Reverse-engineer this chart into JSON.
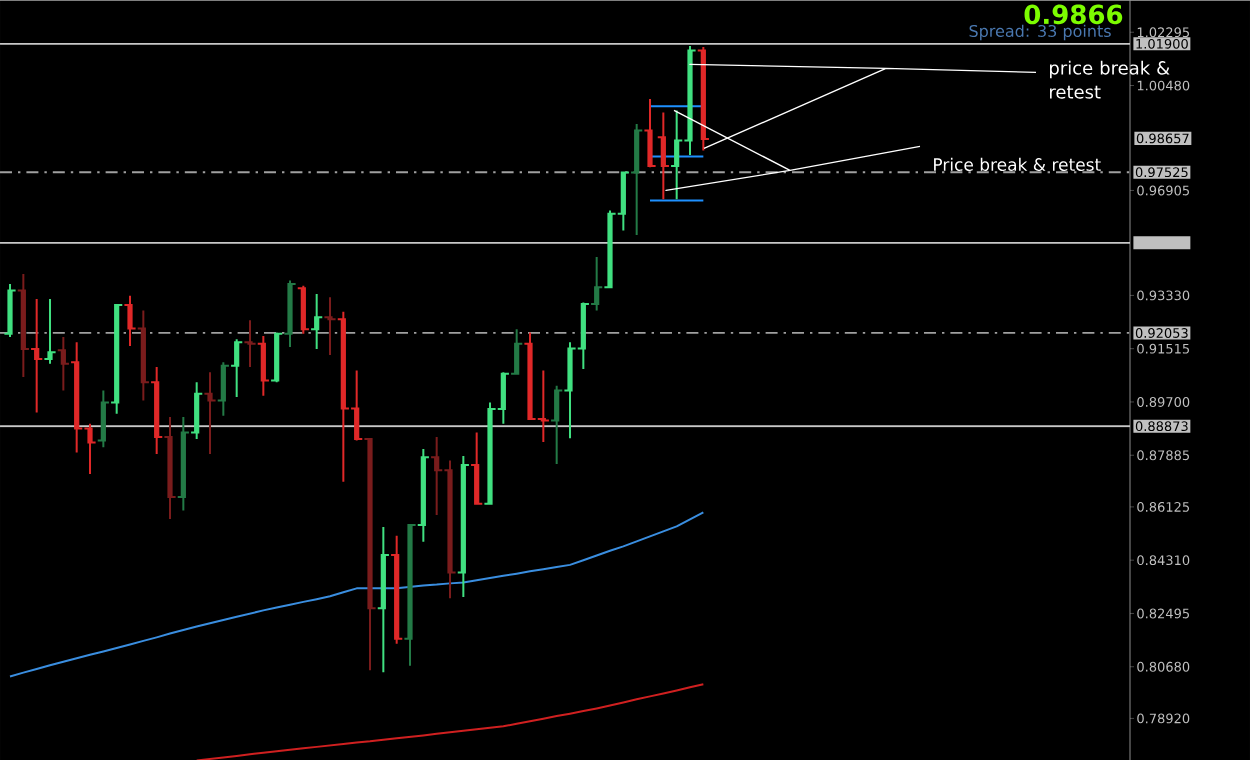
{
  "chart_data": {
    "type": "candlestick",
    "categories": [
      null,
      null,
      null,
      null,
      null,
      null,
      null,
      null,
      null,
      null,
      null,
      null,
      null,
      null,
      null,
      null,
      null,
      null,
      null,
      null,
      null,
      null,
      null,
      null,
      null,
      null,
      null,
      null,
      null,
      null,
      null,
      null,
      null,
      null,
      null,
      null,
      null,
      null,
      null,
      null,
      null,
      null,
      null,
      null,
      null,
      null,
      null,
      null,
      null,
      null,
      null,
      null,
      null
    ],
    "ohlc": [
      [
        0.9202,
        0.9372,
        0.9191,
        0.935
      ],
      [
        0.935,
        0.9406,
        0.9055,
        0.915
      ],
      [
        0.915,
        0.9321,
        0.8934,
        0.9116
      ],
      [
        0.9116,
        0.9321,
        0.91,
        0.9139
      ],
      [
        0.9146,
        0.9191,
        0.9009,
        0.91
      ],
      [
        0.9105,
        0.9173,
        0.8798,
        0.888
      ],
      [
        0.888,
        0.8896,
        0.8725,
        0.8832
      ],
      [
        0.8839,
        0.9009,
        0.8816,
        0.8968
      ],
      [
        0.8968,
        0.9304,
        0.893,
        0.93
      ],
      [
        0.93,
        0.9332,
        0.9161,
        0.922
      ],
      [
        0.922,
        0.9282,
        0.8975,
        0.9037
      ],
      [
        0.9037,
        0.9089,
        0.8793,
        0.8851
      ],
      [
        0.8851,
        0.8919,
        0.8571,
        0.8646
      ],
      [
        0.8646,
        0.8919,
        0.86,
        0.8866
      ],
      [
        0.8866,
        0.9037,
        0.8844,
        0.8998
      ],
      [
        0.8998,
        0.9071,
        0.8793,
        0.8975
      ],
      [
        0.8975,
        0.9105,
        0.8923,
        0.9093
      ],
      [
        0.9093,
        0.9184,
        0.8987,
        0.9173
      ],
      [
        0.9173,
        0.9248,
        0.9089,
        0.9168
      ],
      [
        0.9168,
        0.9195,
        0.8991,
        0.9043
      ],
      [
        0.9043,
        0.9207,
        0.9037,
        0.9202
      ],
      [
        0.9202,
        0.9384,
        0.9157,
        0.9372
      ],
      [
        0.9357,
        0.9366,
        0.9202,
        0.9218
      ],
      [
        0.9218,
        0.9338,
        0.915,
        0.9259
      ],
      [
        0.9259,
        0.9327,
        0.913,
        0.9252
      ],
      [
        0.9252,
        0.9277,
        0.8698,
        0.8948
      ],
      [
        0.8948,
        0.9077,
        0.8839,
        0.8844
      ],
      [
        0.8844,
        0.8846,
        0.8056,
        0.8267
      ],
      [
        0.8267,
        0.8544,
        0.8049,
        0.8449
      ],
      [
        0.8449,
        0.8514,
        0.8146,
        0.8163
      ],
      [
        0.8163,
        0.8551,
        0.8071,
        0.8551
      ],
      [
        0.8551,
        0.881,
        0.8494,
        0.8782
      ],
      [
        0.8782,
        0.8851,
        0.8585,
        0.8737
      ],
      [
        0.8737,
        0.8771,
        0.8301,
        0.8389
      ],
      [
        0.8389,
        0.8786,
        0.8306,
        0.8755
      ],
      [
        0.8755,
        0.8866,
        0.8623,
        0.8623
      ],
      [
        0.8623,
        0.8968,
        0.8623,
        0.8946
      ],
      [
        0.8946,
        0.9071,
        0.8896,
        0.9066
      ],
      [
        0.9066,
        0.9218,
        0.9066,
        0.9168
      ],
      [
        0.9168,
        0.9207,
        0.8912,
        0.8912
      ],
      [
        0.8912,
        0.9077,
        0.8834,
        0.8907
      ],
      [
        0.8907,
        0.9025,
        0.8759,
        0.9009
      ],
      [
        0.9009,
        0.9173,
        0.8846,
        0.9152
      ],
      [
        0.9152,
        0.9309,
        0.9082,
        0.9304
      ],
      [
        0.9304,
        0.9464,
        0.9282,
        0.9361
      ],
      [
        0.9361,
        0.9622,
        0.9357,
        0.9611
      ],
      [
        0.9611,
        0.9752,
        0.9554,
        0.9752
      ],
      [
        0.9752,
        0.9917,
        0.9539,
        0.9895
      ],
      [
        0.9895,
        1.0002,
        0.977,
        0.9774
      ],
      [
        0.9872,
        0.9956,
        0.9661,
        0.9774
      ],
      [
        0.9774,
        0.9963,
        0.9661,
        0.9861
      ],
      [
        0.9861,
        1.0183,
        0.9811,
        1.0167
      ],
      [
        1.0167,
        1.0179,
        0.9827,
        0.9866
      ]
    ],
    "colors": [
      "#40e080",
      "#7a1c1c",
      "#e02828",
      "#40e080",
      "#7a1c1c",
      "#e02828",
      "#e02828",
      "#237a46",
      "#40e080",
      "#e02828",
      "#7a1c1c",
      "#e02828",
      "#7a1c1c",
      "#237a46",
      "#40e080",
      "#7a1c1c",
      "#237a46",
      "#40e080",
      "#7a1c1c",
      "#e02828",
      "#40e080",
      "#237a46",
      "#e02828",
      "#40e080",
      "#7a1c1c",
      "#e02828",
      "#e02828",
      "#7a1c1c",
      "#40e080",
      "#e02828",
      "#237a46",
      "#40e080",
      "#7a1c1c",
      "#7a1c1c",
      "#40e080",
      "#e02828",
      "#40e080",
      "#40e080",
      "#237a46",
      "#e02828",
      "#e02828",
      "#237a46",
      "#40e080",
      "#40e080",
      "#237a46",
      "#40e080",
      "#40e080",
      "#237a46",
      "#e02828",
      "#e02828",
      "#40e080",
      "#40e080",
      "#e02828"
    ],
    "series": [
      {
        "type": "line",
        "color": "#3a8ee0",
        "values": [
          0.8035,
          0.8048,
          0.806,
          0.8073,
          0.8085,
          0.8097,
          0.8109,
          0.812,
          0.8132,
          0.8144,
          0.8156,
          0.8168,
          0.8181,
          0.8193,
          0.8205,
          0.8216,
          0.8227,
          0.8238,
          0.8249,
          0.826,
          0.827,
          0.8279,
          0.8289,
          0.8298,
          0.8308,
          0.8322,
          0.8335,
          0.8335,
          0.8335,
          0.8335,
          0.834,
          0.8345,
          0.8348,
          0.8352,
          0.8355,
          0.8363,
          0.837,
          0.8378,
          0.8385,
          0.8393,
          0.84,
          0.8408,
          0.8415,
          0.8431,
          0.8447,
          0.8463,
          0.8478,
          0.8495,
          0.8512,
          0.8529,
          0.8546,
          0.857,
          0.8594
        ]
      },
      {
        "type": "line",
        "color": "#d02020",
        "values": [
          null,
          null,
          null,
          null,
          null,
          null,
          null,
          null,
          null,
          null,
          null,
          null,
          null,
          null,
          0.7749,
          0.7754,
          0.7759,
          0.7764,
          0.777,
          0.7775,
          0.778,
          0.7785,
          0.779,
          0.7795,
          0.78,
          0.7805,
          0.781,
          0.7814,
          0.7819,
          0.7824,
          0.7829,
          0.7834,
          0.784,
          0.7845,
          0.785,
          0.7855,
          0.786,
          0.7865,
          0.7874,
          0.7882,
          0.7891,
          0.79,
          0.7908,
          0.7917,
          0.7926,
          0.7936,
          0.7946,
          0.7957,
          0.7967,
          0.7977,
          0.7987,
          0.7998,
          0.8008
        ]
      },
      {
        "type": "line",
        "color": "#1e90ff",
        "values": [
          null,
          null,
          null,
          null,
          null,
          null,
          null,
          null,
          null,
          null,
          null,
          null,
          null,
          null,
          null,
          null,
          null,
          null,
          null,
          null,
          null,
          null,
          null,
          null,
          null,
          null,
          null,
          null,
          null,
          null,
          null,
          null,
          null,
          null,
          null,
          null,
          null,
          null,
          null,
          null,
          null,
          null,
          null,
          null,
          null,
          null,
          null,
          null,
          0.9977,
          0.9977,
          0.9977,
          0.9977,
          0.9977
        ]
      },
      {
        "type": "line",
        "color": "#1e90ff",
        "values": [
          null,
          null,
          null,
          null,
          null,
          null,
          null,
          null,
          null,
          null,
          null,
          null,
          null,
          null,
          null,
          null,
          null,
          null,
          null,
          null,
          null,
          null,
          null,
          null,
          null,
          null,
          null,
          null,
          null,
          null,
          null,
          null,
          null,
          null,
          null,
          null,
          null,
          null,
          null,
          null,
          null,
          null,
          null,
          null,
          null,
          null,
          null,
          null,
          0.9806,
          0.9806,
          0.9806,
          0.9806,
          0.9806
        ]
      },
      {
        "type": "line",
        "color": "#1e90ff",
        "values": [
          null,
          null,
          null,
          null,
          null,
          null,
          null,
          null,
          null,
          null,
          null,
          null,
          null,
          null,
          null,
          null,
          null,
          null,
          null,
          null,
          null,
          null,
          null,
          null,
          null,
          null,
          null,
          null,
          null,
          null,
          null,
          null,
          null,
          null,
          null,
          null,
          null,
          null,
          null,
          null,
          null,
          null,
          null,
          null,
          null,
          null,
          null,
          null,
          0.9656,
          0.9656,
          0.9656,
          0.9656,
          0.9656
        ]
      }
    ],
    "ylim": [
      0.7749,
      1.0338
    ],
    "yticks": [
      {
        "value": 0.7892,
        "label": "0.78920"
      },
      {
        "value": 0.8068,
        "label": "0.80680"
      },
      {
        "value": 0.82495,
        "label": "0.82495"
      },
      {
        "value": 0.8431,
        "label": "0.84310"
      },
      {
        "value": 0.86125,
        "label": "0.86125"
      },
      {
        "value": 0.87885,
        "label": "0.87885"
      },
      {
        "value": 0.897,
        "label": "0.89700"
      },
      {
        "value": 0.91515,
        "label": "0.91515"
      },
      {
        "value": 0.9333,
        "label": "0.93330"
      },
      {
        "value": 0.96905,
        "label": "0.96905"
      },
      {
        "value": 1.0048,
        "label": "1.00480"
      },
      {
        "value": 1.02295,
        "label": "1.02295"
      }
    ],
    "ref_lines": [
      {
        "axis": "y",
        "value": 1.019,
        "label": "1.01900",
        "color": "#c8c8c8",
        "line_style": "solid"
      },
      {
        "axis": "y",
        "value": 0.97525,
        "label": "0.97525",
        "color": "#a0a0a0",
        "line_style": "dashed"
      },
      {
        "axis": "y",
        "value": 0.9512,
        "label": null,
        "color": "#c8c8c8",
        "line_style": "solid"
      },
      {
        "axis": "y",
        "value": 0.92053,
        "label": "0.92053",
        "color": "#a0a0a0",
        "line_style": "dashed"
      },
      {
        "axis": "y",
        "value": 0.88873,
        "label": "0.88873",
        "color": "#c8c8c8",
        "line_style": "solid"
      }
    ],
    "annotations": [
      "0.9866",
      "Spread: 33 points",
      "price break & retest",
      "Price break & retest",
      "0.98657"
    ],
    "tick_labels": "y",
    "grid": false
  }
}
